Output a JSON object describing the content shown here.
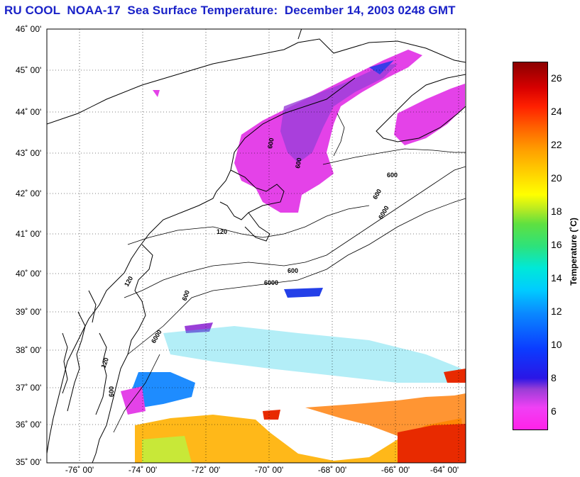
{
  "title": "RU COOL  NOAA-17  Sea Surface Temperature:  December 14, 2003 0248 GMT",
  "latitude_labels": [
    "46˚ 00'",
    "45˚ 00'",
    "44˚ 00'",
    "43˚ 00'",
    "42˚ 00'",
    "41˚ 00'",
    "40˚ 00'",
    "39˚ 00'",
    "38˚ 00'",
    "37˚ 00'",
    "36˚ 00'",
    "35˚ 00'"
  ],
  "longitude_labels": [
    "-76˚ 00'",
    "-74˚ 00'",
    "-72˚ 00'",
    "-70˚ 00'",
    "-68˚ 00'",
    "-66˚ 00'",
    "-64˚ 00'"
  ],
  "bathymetry_labels": [
    "120",
    "120",
    "120",
    "600",
    "600",
    "600",
    "600",
    "600",
    "600",
    "600",
    "6000",
    "6000",
    "6000"
  ],
  "colorbar": {
    "label": "Temperature (˚C)",
    "ticks": [
      "26",
      "24",
      "22",
      "20",
      "18",
      "16",
      "14",
      "12",
      "10",
      "8",
      "6"
    ],
    "range": [
      5,
      27
    ]
  },
  "colors": {
    "title": "#1a22c8",
    "grid": "#000000",
    "coast": "#000000"
  }
}
